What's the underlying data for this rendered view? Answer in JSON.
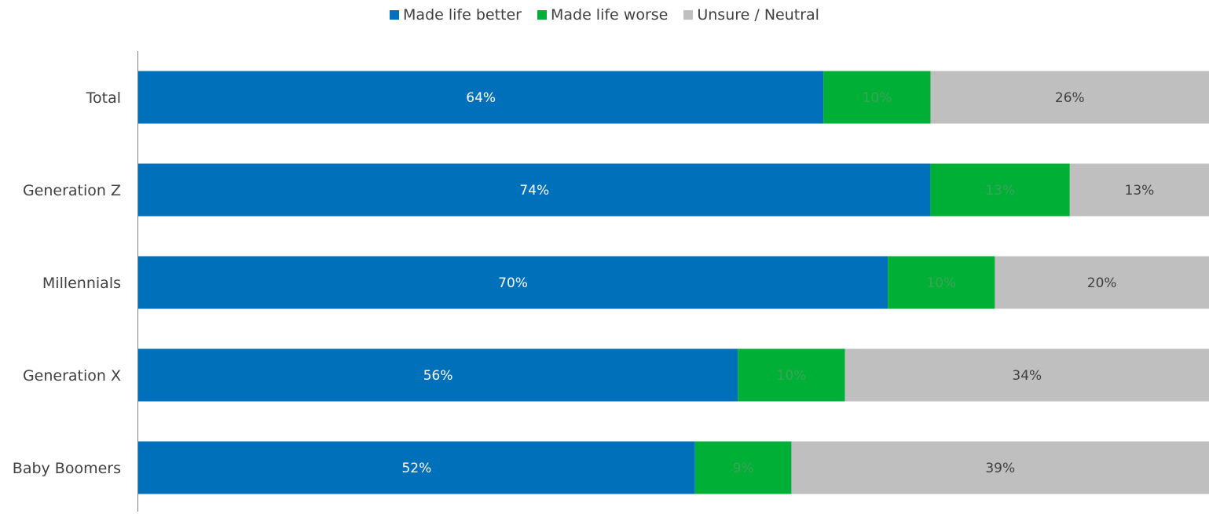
{
  "chart_data": {
    "type": "bar",
    "orientation": "horizontal",
    "stacked": true,
    "categories": [
      "Total",
      "Generation Z",
      "Millennials",
      "Generation X",
      "Baby Boomers"
    ],
    "series": [
      {
        "name": "Made life better",
        "color": "#0070BA",
        "label_color": "#ffffff",
        "values": [
          64,
          74,
          70,
          56,
          52
        ],
        "labels": [
          "64%",
          "74%",
          "70%",
          "56%",
          "52%"
        ]
      },
      {
        "name": "Made life worse",
        "color": "#00B036",
        "label_color": "#3ea35a",
        "values": [
          10,
          13,
          10,
          10,
          9
        ],
        "labels": [
          "10%",
          "13%",
          "10%",
          "10%",
          "9%"
        ]
      },
      {
        "name": "Unsure / Neutral",
        "color": "#BFBFBF",
        "label_color": "#404040",
        "values": [
          26,
          13,
          20,
          34,
          39
        ],
        "labels": [
          "26%",
          "13%",
          "20%",
          "34%",
          "39%"
        ]
      }
    ],
    "xlim": [
      0,
      100
    ],
    "legend_position": "top-center",
    "grid": false
  }
}
